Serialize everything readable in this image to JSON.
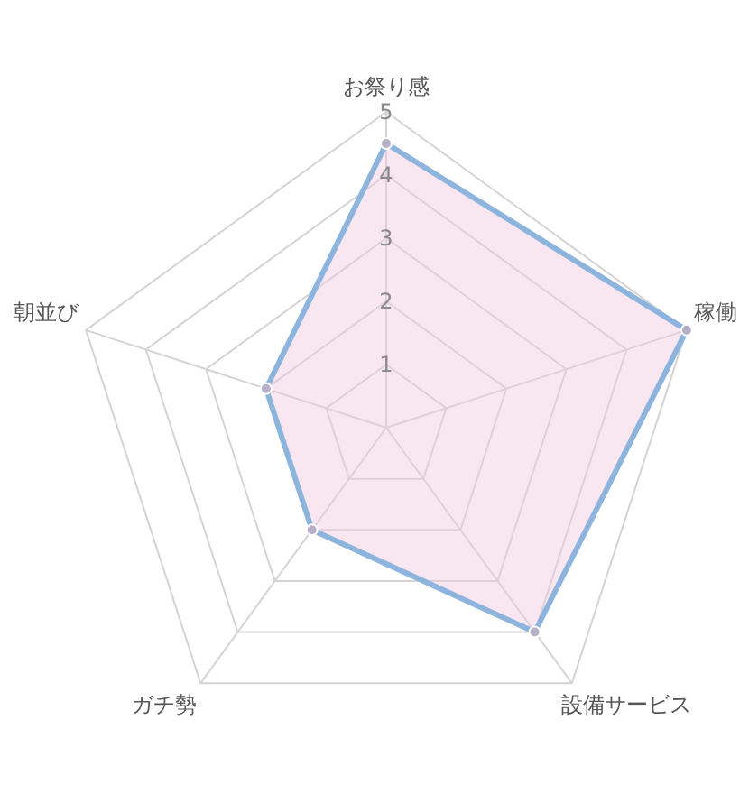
{
  "chart_data": {
    "type": "radar",
    "categories": [
      "お祭り感",
      "稼働",
      "設備サービス",
      "ガチ勢",
      "朝並び"
    ],
    "series": [
      {
        "color": "#8db4dd",
        "values": [
          4.5,
          5,
          4,
          2,
          2
        ]
      }
    ],
    "ylim": [
      0,
      5
    ],
    "yticks": [
      1,
      2,
      3,
      4,
      5
    ],
    "grid": true,
    "marker": "circle"
  }
}
